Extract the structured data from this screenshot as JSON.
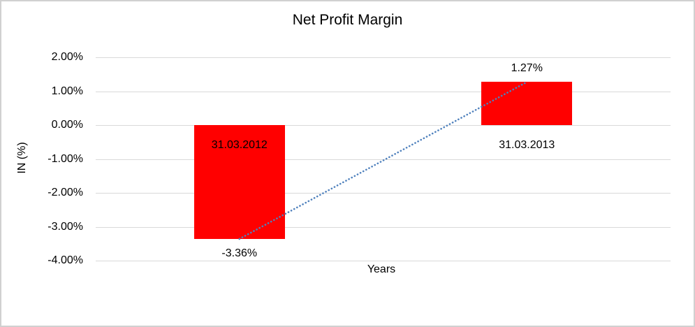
{
  "chart_data": {
    "type": "bar",
    "title": "Net Profit Margin",
    "xlabel": "Years",
    "ylabel": "IN (%)",
    "categories": [
      "31.03.2012",
      "31.03.2013"
    ],
    "values": [
      -3.36,
      1.27
    ],
    "data_labels": [
      "-3.36%",
      "1.27%"
    ],
    "ytick_values": [
      2,
      1,
      0,
      -1,
      -2,
      -3,
      -4
    ],
    "ytick_labels": [
      "2.00%",
      "1.00%",
      "0.00%",
      "-1.00%",
      "-2.00%",
      "-3.00%",
      "-4.00%"
    ],
    "ylim": [
      -4,
      2
    ],
    "grid": true,
    "legend": false,
    "bar_color": "#ff0000",
    "gridline_color": "#d9d9d9",
    "text_color": "#000000",
    "trendline": {
      "style": "dotted",
      "color": "#4f81bd",
      "from_value": -3.36,
      "to_value": 1.27
    }
  }
}
